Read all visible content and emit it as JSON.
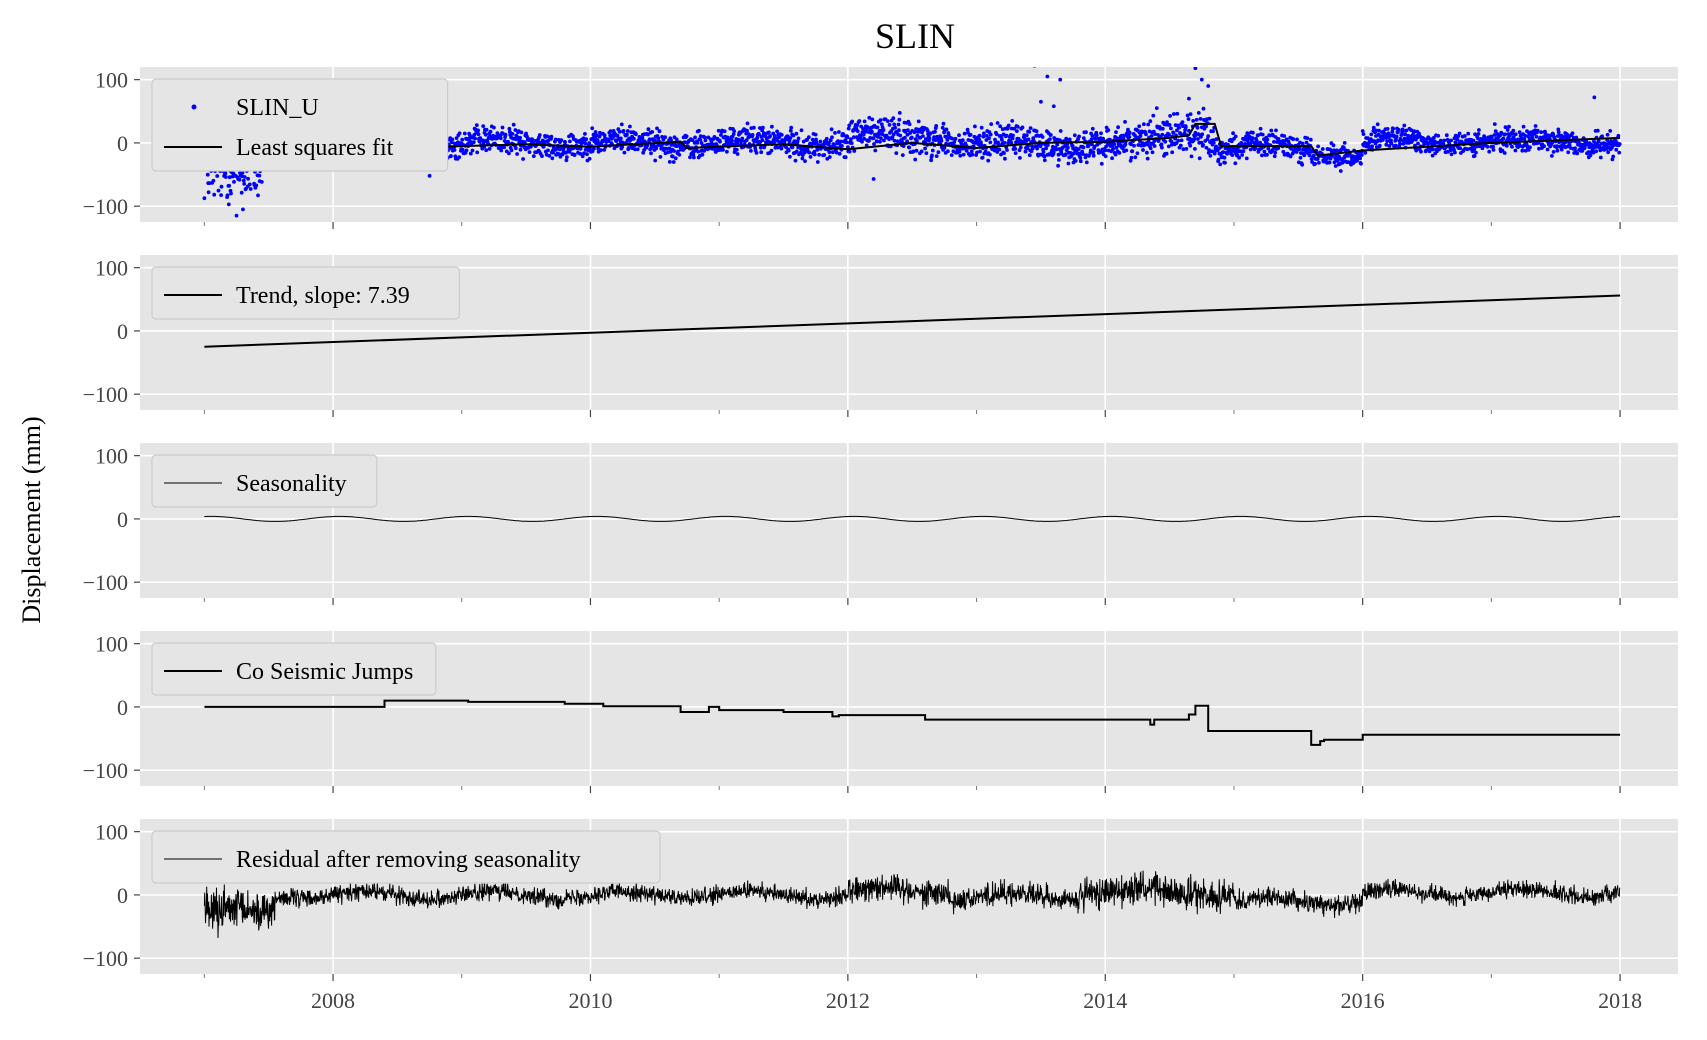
{
  "chart_data": {
    "type": "line",
    "title": "SLIN",
    "ylabel": "Displacement (mm)",
    "xlabel": "",
    "x_ticks": [
      "2008",
      "2010",
      "2012",
      "2014",
      "2016",
      "2018"
    ],
    "xlim": [
      2006.5,
      2018.45
    ],
    "ylim": [
      -125,
      120
    ],
    "y_ticks": [
      100,
      0,
      -100
    ],
    "y_tick_labels": [
      "100",
      "0",
      "−100"
    ],
    "grid": true,
    "legend_placement": "upper-left",
    "colors": {
      "data_points": "#0000ff",
      "line": "#000000",
      "panel_bg": "#e5e5e5",
      "grid": "#ffffff"
    },
    "panels": [
      {
        "id": "observed",
        "series": [
          {
            "name": "SLIN_U",
            "style": "points",
            "color": "#0000ff",
            "segments": [
              {
                "x0": 2007.0,
                "x1": 2007.45,
                "base": -45,
                "amp": 0,
                "period": 1,
                "noise": 40
              },
              {
                "x0": 2007.45,
                "x1": 2008.8,
                "base": 0,
                "amp": 6,
                "period": 1,
                "noise": 16
              },
              {
                "x0": 2008.8,
                "x1": 2012.0,
                "base": 0,
                "amp": 6,
                "period": 1,
                "noise": 18
              },
              {
                "x0": 2012.0,
                "x1": 2012.8,
                "base": 10,
                "amp": 6,
                "period": 1,
                "noise": 24
              },
              {
                "x0": 2012.8,
                "x1": 2014.3,
                "base": -2,
                "amp": 6,
                "period": 1,
                "noise": 22
              },
              {
                "x0": 2014.3,
                "x1": 2014.85,
                "base": 15,
                "amp": 0,
                "period": 1,
                "noise": 30
              },
              {
                "x0": 2014.85,
                "x1": 2015.6,
                "base": -8,
                "amp": 6,
                "period": 1,
                "noise": 18
              },
              {
                "x0": 2015.6,
                "x1": 2016.0,
                "base": -22,
                "amp": 0,
                "period": 1,
                "noise": 16
              },
              {
                "x0": 2016.0,
                "x1": 2018.0,
                "base": 2,
                "amp": 6,
                "period": 1,
                "noise": 16
              }
            ],
            "outliers": [
              [
                2013.45,
                122
              ],
              [
                2013.55,
                105
              ],
              [
                2013.65,
                100
              ],
              [
                2013.5,
                65
              ],
              [
                2013.6,
                58
              ],
              [
                2014.7,
                118
              ],
              [
                2014.75,
                100
              ],
              [
                2014.8,
                90
              ],
              [
                2014.65,
                70
              ],
              [
                2007.25,
                -115
              ],
              [
                2007.3,
                -105
              ],
              [
                2008.75,
                -52
              ],
              [
                2012.2,
                -57
              ],
              [
                2017.8,
                72
              ]
            ]
          },
          {
            "name": "Least squares fit",
            "style": "line",
            "color": "#000000",
            "points": [
              [
                2007.0,
                -30
              ],
              [
                2007.5,
                -25
              ],
              [
                2008.0,
                -15
              ],
              [
                2008.5,
                -8
              ],
              [
                2009.0,
                -5
              ],
              [
                2009.5,
                -2
              ],
              [
                2010.0,
                -6
              ],
              [
                2010.7,
                2
              ],
              [
                2010.75,
                -8
              ],
              [
                2011.5,
                -2
              ],
              [
                2012.0,
                -10
              ],
              [
                2012.5,
                0
              ],
              [
                2013.0,
                -8
              ],
              [
                2013.5,
                0
              ],
              [
                2014.0,
                2
              ],
              [
                2014.5,
                8
              ],
              [
                2014.65,
                12
              ],
              [
                2014.7,
                30
              ],
              [
                2014.85,
                30
              ],
              [
                2014.9,
                -5
              ],
              [
                2015.6,
                -5
              ],
              [
                2015.65,
                -20
              ],
              [
                2016.0,
                -12
              ],
              [
                2017.0,
                0
              ],
              [
                2018.0,
                8
              ]
            ]
          }
        ]
      },
      {
        "id": "trend",
        "series": [
          {
            "name": "Trend, slope: 7.39",
            "style": "line",
            "color": "#000000",
            "points": [
              [
                2007.0,
                -25
              ],
              [
                2018.0,
                56
              ]
            ]
          }
        ]
      },
      {
        "id": "seasonality",
        "series": [
          {
            "name": "Seasonality",
            "style": "sine",
            "color": "#000000",
            "x_range": [
              2007.0,
              2018.0
            ],
            "amplitude": 4,
            "period": 1.0,
            "phase": 0.2,
            "offset": 0
          }
        ]
      },
      {
        "id": "jumps",
        "series": [
          {
            "name": "Co Seismic Jumps",
            "style": "step",
            "color": "#000000",
            "points": [
              [
                2007.0,
                0
              ],
              [
                2008.4,
                0
              ],
              [
                2008.4,
                10
              ],
              [
                2009.05,
                10
              ],
              [
                2009.05,
                8
              ],
              [
                2009.8,
                8
              ],
              [
                2009.8,
                5
              ],
              [
                2010.1,
                5
              ],
              [
                2010.1,
                1
              ],
              [
                2010.7,
                1
              ],
              [
                2010.7,
                -8
              ],
              [
                2010.92,
                -8
              ],
              [
                2010.92,
                0
              ],
              [
                2011.0,
                0
              ],
              [
                2011.0,
                -5
              ],
              [
                2011.5,
                -5
              ],
              [
                2011.5,
                -8
              ],
              [
                2011.88,
                -8
              ],
              [
                2011.88,
                -15
              ],
              [
                2011.93,
                -15
              ],
              [
                2011.93,
                -13
              ],
              [
                2012.6,
                -13
              ],
              [
                2012.6,
                -20
              ],
              [
                2014.35,
                -20
              ],
              [
                2014.35,
                -28
              ],
              [
                2014.38,
                -28
              ],
              [
                2014.38,
                -20
              ],
              [
                2014.65,
                -20
              ],
              [
                2014.65,
                -12
              ],
              [
                2014.7,
                -12
              ],
              [
                2014.7,
                2
              ],
              [
                2014.8,
                2
              ],
              [
                2014.8,
                -38
              ],
              [
                2015.6,
                -38
              ],
              [
                2015.6,
                -60
              ],
              [
                2015.67,
                -60
              ],
              [
                2015.67,
                -54
              ],
              [
                2015.7,
                -54
              ],
              [
                2015.7,
                -52
              ],
              [
                2016.0,
                -52
              ],
              [
                2016.0,
                -44
              ],
              [
                2018.0,
                -44
              ]
            ]
          }
        ]
      },
      {
        "id": "residual",
        "series": [
          {
            "name": "Residual after removing seasonality",
            "style": "noise-line",
            "color": "#000000",
            "segments": [
              {
                "x0": 2007.0,
                "x1": 2007.55,
                "base": -25,
                "amp": 0,
                "period": 1,
                "noise": 30
              },
              {
                "x0": 2007.55,
                "x1": 2012.0,
                "base": 0,
                "amp": 6,
                "period": 1,
                "noise": 12
              },
              {
                "x0": 2012.0,
                "x1": 2012.8,
                "base": 8,
                "amp": 6,
                "period": 1,
                "noise": 18
              },
              {
                "x0": 2012.8,
                "x1": 2013.8,
                "base": -3,
                "amp": 6,
                "period": 1,
                "noise": 16
              },
              {
                "x0": 2013.8,
                "x1": 2015.0,
                "base": 5,
                "amp": 6,
                "period": 1,
                "noise": 22
              },
              {
                "x0": 2015.0,
                "x1": 2016.0,
                "base": -10,
                "amp": 6,
                "period": 1,
                "noise": 14
              },
              {
                "x0": 2016.0,
                "x1": 2018.0,
                "base": 3,
                "amp": 6,
                "period": 1,
                "noise": 12
              }
            ]
          }
        ]
      }
    ]
  }
}
